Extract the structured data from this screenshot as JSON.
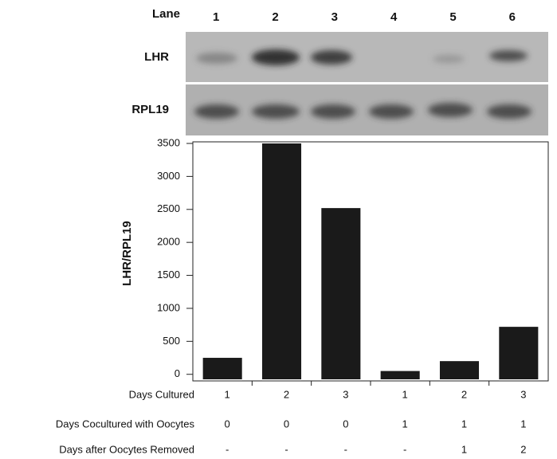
{
  "chart_data": {
    "type": "bar",
    "lane_label": "Lane",
    "categories": [
      "1",
      "2",
      "3",
      "4",
      "5",
      "6"
    ],
    "blot_labels": [
      "LHR",
      "RPL19"
    ],
    "y_label": "LHR/RPL19",
    "values": [
      250,
      3500,
      2520,
      50,
      200,
      720
    ],
    "color": "#1a1a1a",
    "ylim": [
      -100,
      3500
    ],
    "yticks": [
      0,
      500,
      1000,
      1500,
      2000,
      2500,
      3000,
      3500
    ],
    "conditions": [
      {
        "label": "Days Cultured",
        "values": [
          "1",
          "2",
          "3",
          "1",
          "2",
          "3"
        ]
      },
      {
        "label": "Days Cocultured with Oocytes",
        "values": [
          "0",
          "0",
          "0",
          "1",
          "1",
          "1"
        ]
      },
      {
        "label": "Days after Oocytes Removed",
        "values": [
          "-",
          "-",
          "-",
          "-",
          "1",
          "2"
        ]
      }
    ]
  }
}
